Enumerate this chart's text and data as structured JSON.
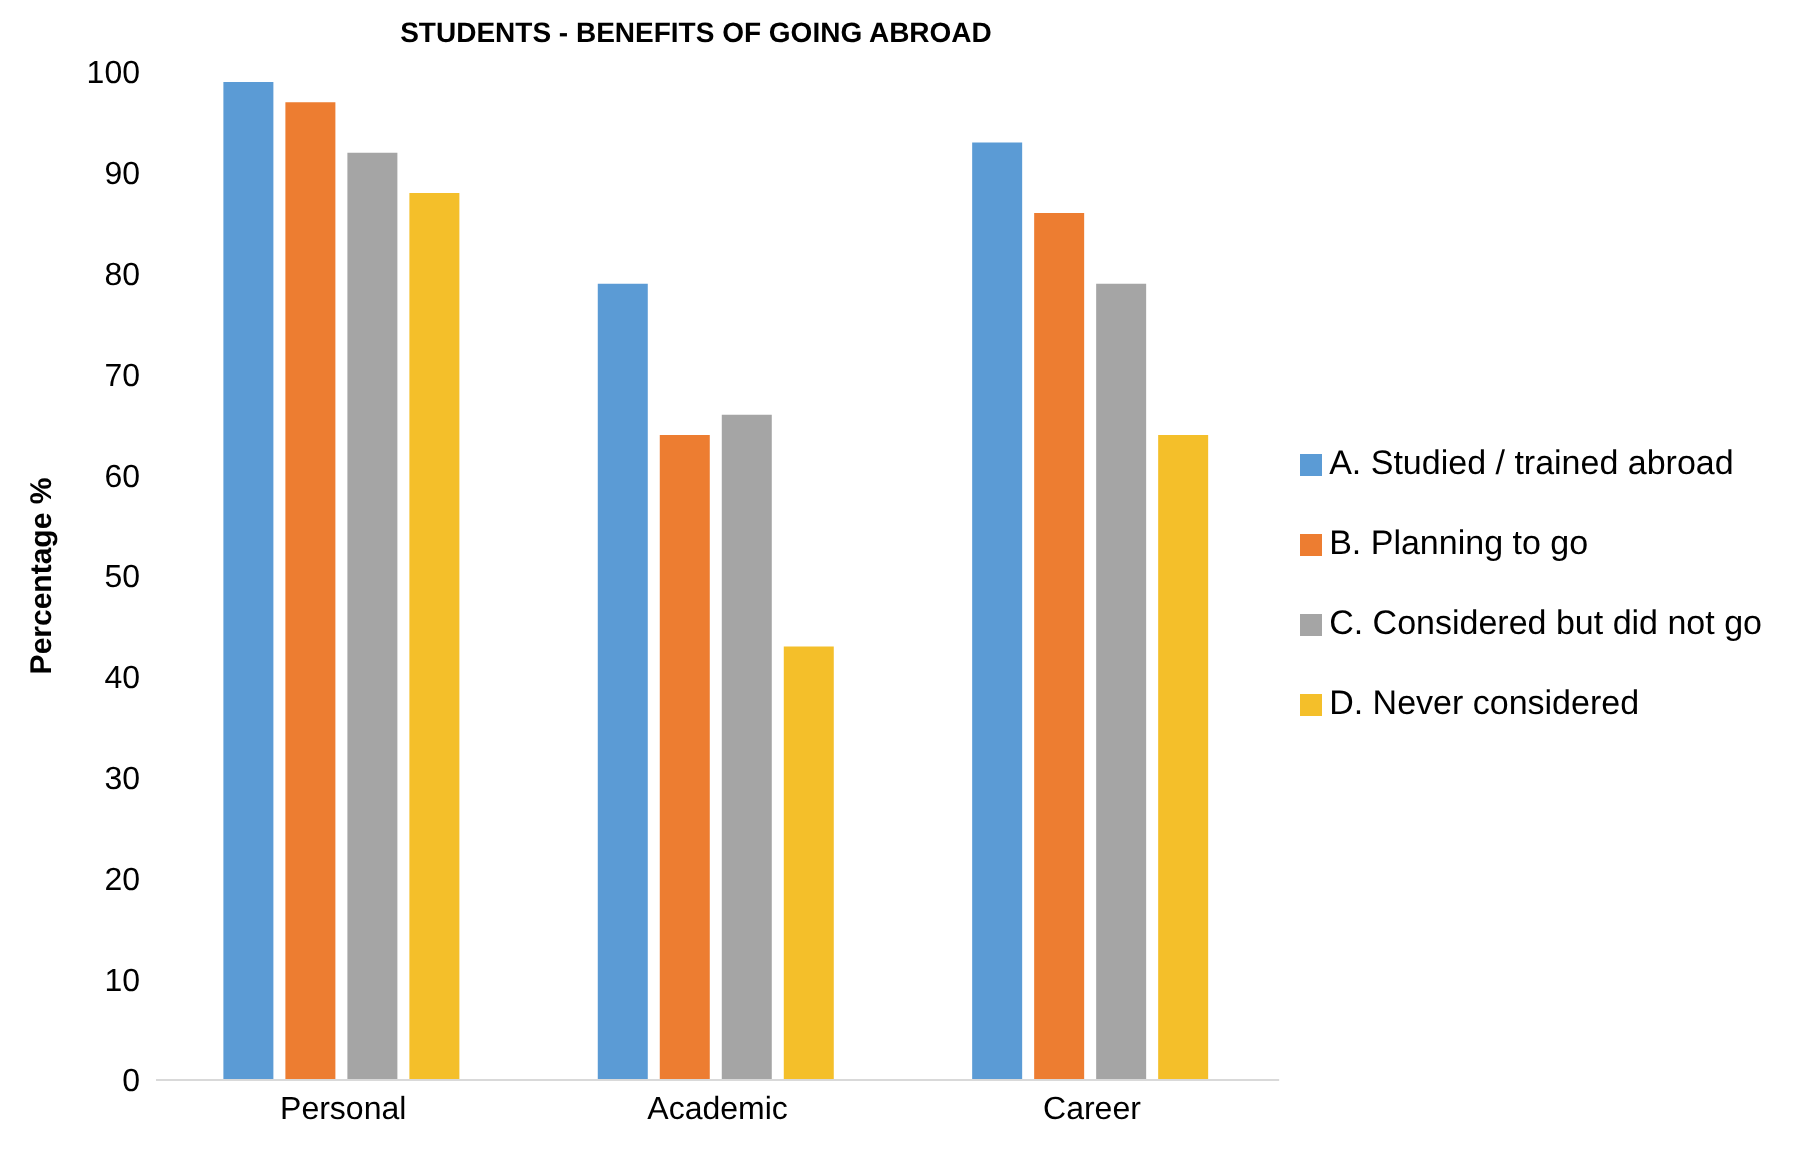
{
  "chart_data": {
    "type": "bar",
    "title": "STUDENTS - BENEFITS OF GOING ABROAD",
    "ylabel": "Percentage %",
    "categories": [
      "Personal",
      "Academic",
      "Career"
    ],
    "series": [
      {
        "name": "A. Studied / trained abroad",
        "color": "#5b9bd5",
        "values": [
          99,
          79,
          93
        ]
      },
      {
        "name": "B. Planning to go",
        "color": "#ed7d31",
        "values": [
          97,
          64,
          86
        ]
      },
      {
        "name": "C. Considered but did not go",
        "color": "#a5a5a5",
        "values": [
          92,
          66,
          79
        ]
      },
      {
        "name": "D. Never considered",
        "color": "#f4bf2a",
        "values": [
          88,
          43,
          64
        ]
      }
    ],
    "ylim": [
      0,
      100
    ],
    "yticks": [
      0,
      10,
      20,
      30,
      40,
      50,
      60,
      70,
      80,
      90,
      100
    ],
    "grid": false,
    "legend": "right"
  }
}
